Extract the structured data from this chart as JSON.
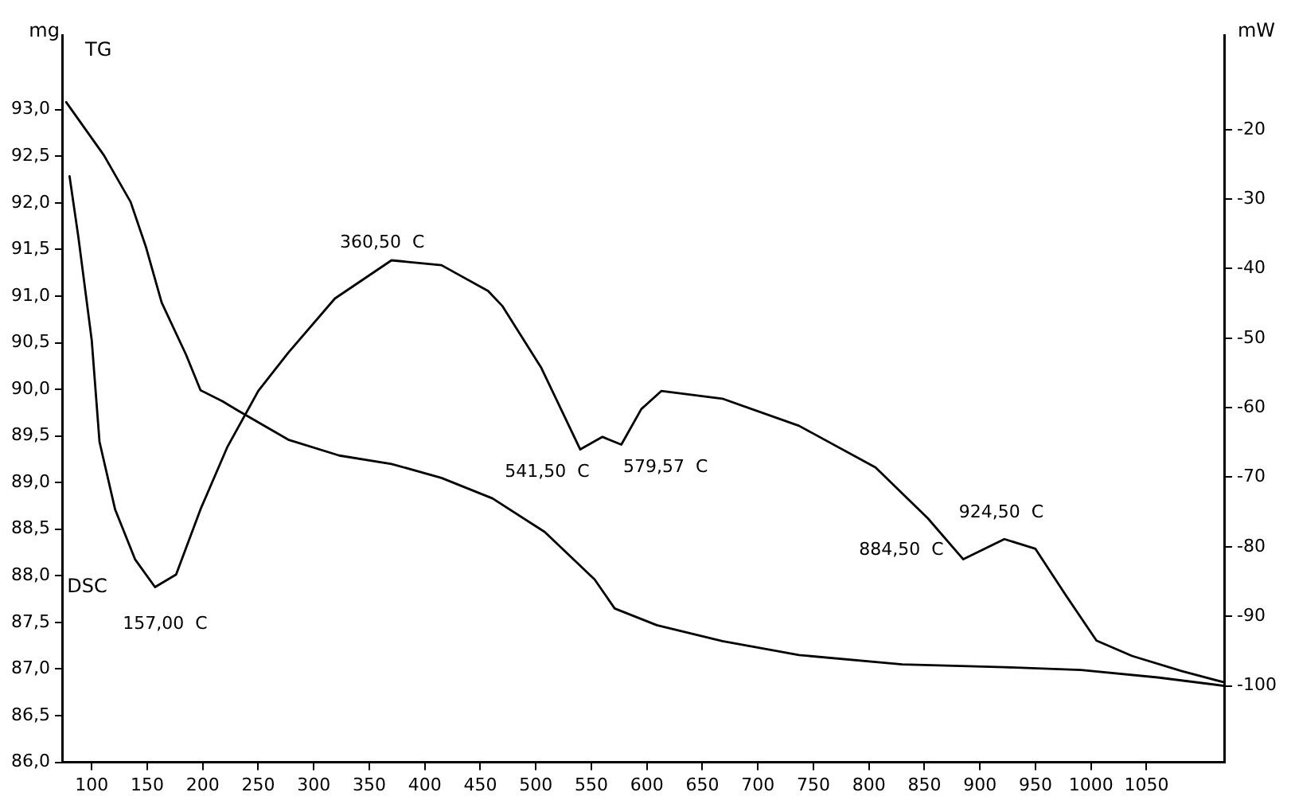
{
  "chart_data": {
    "type": "line",
    "ylabel": "mg",
    "y2label": "mW",
    "xlim": [
      74,
      1120
    ],
    "xticks": [
      100,
      150,
      200,
      250,
      300,
      350,
      400,
      450,
      500,
      550,
      600,
      650,
      700,
      750,
      800,
      850,
      900,
      950,
      1000,
      1050
    ],
    "ylim": [
      86,
      93.8
    ],
    "yticks": [
      {
        "value": 86,
        "label": "86,0"
      },
      {
        "value": 86.5,
        "label": "86,5"
      },
      {
        "value": 87,
        "label": "87,0"
      },
      {
        "value": 87.5,
        "label": "87,5"
      },
      {
        "value": 88,
        "label": "88,0"
      },
      {
        "value": 88.5,
        "label": "88,5"
      },
      {
        "value": 89,
        "label": "89,0"
      },
      {
        "value": 89.5,
        "label": "89,5"
      },
      {
        "value": 90,
        "label": "90,0"
      },
      {
        "value": 90.5,
        "label": "90,5"
      },
      {
        "value": 91,
        "label": "91,0"
      },
      {
        "value": 91.5,
        "label": "91,5"
      },
      {
        "value": 92,
        "label": "92,0"
      },
      {
        "value": 92.5,
        "label": "92,5"
      },
      {
        "value": 93,
        "label": "93,0"
      }
    ],
    "y2lim": [
      -111,
      -6.4
    ],
    "y2ticks": [
      -100,
      -90,
      -80,
      -70,
      -60,
      -50,
      -40,
      -30,
      -20
    ],
    "grid": false,
    "legend": false,
    "marker": "none",
    "line_style": "solid",
    "series": [
      {
        "name": "TG",
        "color": "#000000",
        "x": [
          77,
          111,
          135,
          149,
          163,
          185,
          198,
          218,
          232,
          277,
          323,
          370,
          415,
          461,
          508,
          553,
          571,
          609,
          668,
          737,
          830,
          922,
          991,
          1060,
          1120
        ],
        "values": [
          93.08,
          92.51,
          92.01,
          91.52,
          90.93,
          90.37,
          89.99,
          89.87,
          89.77,
          89.46,
          89.29,
          89.2,
          89.05,
          88.83,
          88.47,
          87.96,
          87.65,
          87.47,
          87.3,
          87.15,
          87.05,
          87.02,
          86.99,
          86.91,
          86.82
        ]
      },
      {
        "name": "DSC",
        "color": "#000000",
        "axis": "y2",
        "x": [
          80,
          88,
          100,
          107,
          121,
          139,
          157,
          176,
          198,
          222,
          250,
          277,
          319,
          370,
          415,
          457,
          470,
          505,
          540,
          560,
          577,
          595,
          613,
          668,
          737,
          806,
          853,
          885,
          922,
          950,
          977,
          1005,
          1037,
          1082,
          1120
        ],
        "values": [
          -26.7,
          -35.5,
          -50.3,
          -64.9,
          -74.6,
          -81.8,
          -85.8,
          -84,
          -74.6,
          -65.7,
          -57.6,
          -52.1,
          -44.3,
          -38.8,
          -39.5,
          -43.2,
          -45.4,
          -54.3,
          -66,
          -64.2,
          -65.3,
          -60.2,
          -57.6,
          -58.7,
          -62.6,
          -68.6,
          -75.9,
          -81.8,
          -78.9,
          -80.3,
          -86.9,
          -93.5,
          -95.7,
          -97.9,
          -99.5
        ]
      }
    ],
    "annotations": [
      "157,00  C",
      "360,50  C",
      "541,50  C",
      "579,57  C",
      "884,50  C",
      "924,50  C"
    ]
  }
}
